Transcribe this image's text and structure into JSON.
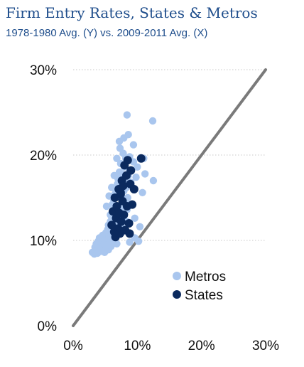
{
  "header": {
    "title": "Firm Entry Rates, States & Metros",
    "subtitle": "1978-1980 Avg. (Y) vs. 2009-2011 Avg. (X)"
  },
  "colors": {
    "metros": "#a9c6ee",
    "states": "#0b2a5e",
    "reference_line": "#7a7a7a",
    "grid": "#c8c8c8"
  },
  "chart_data": {
    "type": "scatter",
    "title": "Firm Entry Rates, States & Metros",
    "subtitle": "1978-1980 Avg. (Y) vs. 2009-2011 Avg. (X)",
    "xlabel": "",
    "ylabel": "",
    "xlim": [
      0,
      30
    ],
    "ylim": [
      0,
      30
    ],
    "x_ticks": [
      "0%",
      "10%",
      "20%",
      "30%"
    ],
    "y_ticks": [
      "0%",
      "10%",
      "20%",
      "30%"
    ],
    "grid": "horizontal dotted",
    "legend_position": "bottom-right",
    "reference_line": {
      "from": [
        0,
        0
      ],
      "to": [
        30,
        30
      ]
    },
    "series": [
      {
        "name": "Metros",
        "points": [
          [
            3.0,
            8.6
          ],
          [
            3.3,
            8.4
          ],
          [
            3.5,
            8.9
          ],
          [
            3.4,
            9.2
          ],
          [
            3.8,
            8.5
          ],
          [
            3.6,
            9.6
          ],
          [
            4.0,
            9.0
          ],
          [
            4.2,
            8.7
          ],
          [
            3.9,
            9.9
          ],
          [
            4.3,
            9.4
          ],
          [
            4.1,
            10.3
          ],
          [
            4.5,
            8.8
          ],
          [
            4.4,
            9.8
          ],
          [
            4.7,
            9.2
          ],
          [
            4.6,
            10.6
          ],
          [
            4.9,
            8.6
          ],
          [
            4.8,
            9.6
          ],
          [
            5.0,
            10.1
          ],
          [
            5.2,
            9.0
          ],
          [
            5.1,
            10.9
          ],
          [
            5.3,
            9.5
          ],
          [
            5.4,
            11.3
          ],
          [
            5.5,
            8.9
          ],
          [
            5.6,
            10.4
          ],
          [
            5.7,
            9.8
          ],
          [
            5.5,
            11.8
          ],
          [
            5.8,
            12.2
          ],
          [
            5.9,
            9.3
          ],
          [
            6.0,
            10.8
          ],
          [
            5.8,
            13.0
          ],
          [
            6.1,
            11.5
          ],
          [
            6.2,
            9.9
          ],
          [
            6.0,
            12.7
          ],
          [
            6.3,
            13.6
          ],
          [
            6.1,
            14.2
          ],
          [
            6.4,
            10.6
          ],
          [
            6.5,
            12.0
          ],
          [
            6.3,
            14.8
          ],
          [
            6.6,
            11.2
          ],
          [
            6.7,
            13.3
          ],
          [
            6.5,
            15.4
          ],
          [
            6.8,
            9.6
          ],
          [
            6.9,
            12.6
          ],
          [
            6.6,
            16.0
          ],
          [
            7.0,
            14.0
          ],
          [
            7.1,
            10.9
          ],
          [
            6.9,
            16.6
          ],
          [
            7.2,
            12.4
          ],
          [
            7.0,
            17.2
          ],
          [
            7.3,
            13.8
          ],
          [
            7.4,
            15.2
          ],
          [
            7.2,
            18.0
          ],
          [
            7.5,
            11.8
          ],
          [
            7.6,
            16.4
          ],
          [
            7.4,
            19.0
          ],
          [
            7.7,
            14.6
          ],
          [
            7.8,
            12.8
          ],
          [
            7.6,
            17.8
          ],
          [
            7.9,
            15.8
          ],
          [
            8.0,
            13.4
          ],
          [
            7.8,
            20.2
          ],
          [
            8.1,
            17.0
          ],
          [
            8.2,
            14.4
          ],
          [
            8.0,
            18.6
          ],
          [
            8.3,
            16.2
          ],
          [
            8.4,
            12.2
          ],
          [
            8.2,
            19.6
          ],
          [
            8.5,
            15.0
          ],
          [
            8.6,
            17.6
          ],
          [
            8.4,
            13.6
          ],
          [
            8.8,
            18.2
          ],
          [
            9.0,
            16.8
          ],
          [
            9.2,
            14.2
          ],
          [
            9.4,
            19.2
          ],
          [
            9.6,
            12.6
          ],
          [
            9.8,
            17.4
          ],
          [
            5.2,
            14.0
          ],
          [
            5.6,
            15.2
          ],
          [
            6.0,
            16.2
          ],
          [
            6.4,
            17.6
          ],
          [
            6.8,
            19.6
          ],
          [
            7.3,
            20.8
          ],
          [
            7.2,
            21.6
          ],
          [
            7.9,
            22.0
          ],
          [
            8.4,
            24.7
          ],
          [
            8.8,
            19.8
          ],
          [
            9.4,
            21.2
          ],
          [
            10.0,
            18.6
          ],
          [
            10.4,
            11.6
          ],
          [
            10.2,
            9.9
          ],
          [
            10.8,
            15.6
          ],
          [
            8.8,
            9.8
          ],
          [
            9.6,
            10.3
          ],
          [
            11.2,
            17.8
          ],
          [
            12.4,
            24.0
          ],
          [
            12.5,
            17.0
          ],
          [
            11.0,
            19.6
          ],
          [
            8.6,
            22.4
          ]
        ]
      },
      {
        "name": "States",
        "points": [
          [
            6.0,
            11.8
          ],
          [
            6.4,
            11.0
          ],
          [
            6.2,
            13.4
          ],
          [
            6.6,
            10.4
          ],
          [
            6.7,
            12.6
          ],
          [
            6.5,
            15.0
          ],
          [
            6.8,
            14.0
          ],
          [
            7.0,
            11.4
          ],
          [
            7.1,
            16.0
          ],
          [
            7.2,
            13.2
          ],
          [
            7.3,
            10.8
          ],
          [
            7.4,
            15.4
          ],
          [
            7.5,
            12.2
          ],
          [
            7.6,
            17.0
          ],
          [
            7.7,
            14.6
          ],
          [
            7.8,
            16.4
          ],
          [
            7.9,
            13.0
          ],
          [
            8.0,
            18.8
          ],
          [
            8.1,
            11.2
          ],
          [
            8.3,
            17.6
          ],
          [
            8.4,
            14.0
          ],
          [
            8.5,
            19.4
          ],
          [
            8.7,
            12.0
          ],
          [
            8.9,
            16.6
          ],
          [
            9.0,
            18.2
          ],
          [
            9.2,
            14.2
          ],
          [
            9.5,
            16.0
          ],
          [
            10.6,
            19.6
          ],
          [
            8.8,
            10.8
          ],
          [
            7.4,
            15.6
          ]
        ]
      }
    ]
  }
}
